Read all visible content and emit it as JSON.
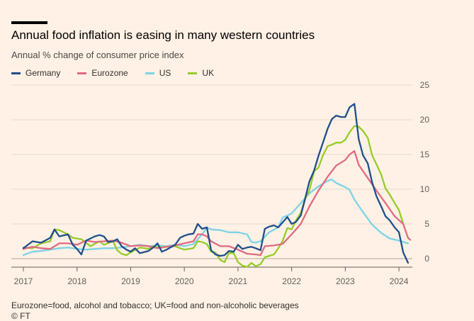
{
  "chart_data": {
    "type": "line",
    "title": "Annual food inflation is easing in many western countries",
    "subtitle": "Annual % change of consumer price index",
    "ylabel": "",
    "xlabel": "",
    "ylim": [
      -1.5,
      25
    ],
    "xlim": [
      2017.0,
      2024.25
    ],
    "yticks": [
      0,
      5,
      10,
      15,
      20,
      25
    ],
    "xticks": [
      "2017",
      "2018",
      "2019",
      "2020",
      "2021",
      "2022",
      "2023",
      "2024"
    ],
    "xtick_values": [
      2017,
      2018,
      2019,
      2020,
      2021,
      2022,
      2023,
      2024
    ],
    "grid": true,
    "legend_position": "top-left",
    "series": [
      {
        "name": "Germany",
        "color": "#1f4e8c",
        "points": [
          [
            2017.0,
            1.5
          ],
          [
            2017.17,
            2.5
          ],
          [
            2017.33,
            2.3
          ],
          [
            2017.5,
            3.0
          ],
          [
            2017.58,
            4.2
          ],
          [
            2017.67,
            3.2
          ],
          [
            2017.83,
            3.5
          ],
          [
            2017.92,
            2.0
          ],
          [
            2018.0,
            1.4
          ],
          [
            2018.08,
            0.6
          ],
          [
            2018.17,
            2.6
          ],
          [
            2018.33,
            3.2
          ],
          [
            2018.42,
            3.4
          ],
          [
            2018.5,
            3.2
          ],
          [
            2018.58,
            2.4
          ],
          [
            2018.67,
            2.5
          ],
          [
            2018.75,
            2.8
          ],
          [
            2018.83,
            1.8
          ],
          [
            2018.92,
            1.3
          ],
          [
            2019.0,
            1.0
          ],
          [
            2019.08,
            1.5
          ],
          [
            2019.17,
            0.8
          ],
          [
            2019.33,
            1.1
          ],
          [
            2019.42,
            1.6
          ],
          [
            2019.5,
            2.2
          ],
          [
            2019.58,
            1.0
          ],
          [
            2019.67,
            1.3
          ],
          [
            2019.83,
            2.0
          ],
          [
            2019.92,
            3.0
          ],
          [
            2020.0,
            3.3
          ],
          [
            2020.08,
            3.5
          ],
          [
            2020.17,
            3.6
          ],
          [
            2020.25,
            5.0
          ],
          [
            2020.33,
            4.3
          ],
          [
            2020.42,
            4.5
          ],
          [
            2020.5,
            1.2
          ],
          [
            2020.58,
            0.6
          ],
          [
            2020.67,
            0.4
          ],
          [
            2020.75,
            0.5
          ],
          [
            2020.83,
            1.1
          ],
          [
            2020.92,
            1.0
          ],
          [
            2021.0,
            2.0
          ],
          [
            2021.08,
            1.4
          ],
          [
            2021.17,
            1.6
          ],
          [
            2021.25,
            1.7
          ],
          [
            2021.33,
            1.5
          ],
          [
            2021.42,
            1.2
          ],
          [
            2021.5,
            4.3
          ],
          [
            2021.58,
            4.6
          ],
          [
            2021.67,
            4.8
          ],
          [
            2021.75,
            4.5
          ],
          [
            2021.83,
            5.2
          ],
          [
            2021.92,
            6.0
          ],
          [
            2022.0,
            5.0
          ],
          [
            2022.08,
            5.3
          ],
          [
            2022.17,
            6.2
          ],
          [
            2022.25,
            8.6
          ],
          [
            2022.33,
            11.1
          ],
          [
            2022.42,
            12.7
          ],
          [
            2022.5,
            14.8
          ],
          [
            2022.58,
            16.6
          ],
          [
            2022.67,
            18.7
          ],
          [
            2022.75,
            20.1
          ],
          [
            2022.83,
            20.6
          ],
          [
            2022.92,
            20.4
          ],
          [
            2023.0,
            20.4
          ],
          [
            2023.08,
            21.8
          ],
          [
            2023.17,
            22.3
          ],
          [
            2023.25,
            17.2
          ],
          [
            2023.33,
            14.9
          ],
          [
            2023.42,
            13.7
          ],
          [
            2023.5,
            11.0
          ],
          [
            2023.58,
            9.0
          ],
          [
            2023.67,
            7.5
          ],
          [
            2023.75,
            6.1
          ],
          [
            2023.83,
            5.5
          ],
          [
            2023.92,
            4.5
          ],
          [
            2024.0,
            3.8
          ],
          [
            2024.08,
            0.9
          ],
          [
            2024.17,
            -0.6
          ]
        ]
      },
      {
        "name": "Eurozone",
        "color": "#e06b80",
        "points": [
          [
            2017.0,
            1.4
          ],
          [
            2017.17,
            1.7
          ],
          [
            2017.33,
            1.5
          ],
          [
            2017.5,
            1.4
          ],
          [
            2017.67,
            2.2
          ],
          [
            2017.83,
            2.2
          ],
          [
            2018.0,
            2.0
          ],
          [
            2018.17,
            2.6
          ],
          [
            2018.33,
            2.4
          ],
          [
            2018.5,
            2.5
          ],
          [
            2018.67,
            2.6
          ],
          [
            2018.83,
            2.3
          ],
          [
            2019.0,
            1.8
          ],
          [
            2019.17,
            1.9
          ],
          [
            2019.33,
            1.8
          ],
          [
            2019.5,
            1.5
          ],
          [
            2019.67,
            1.7
          ],
          [
            2019.83,
            1.9
          ],
          [
            2020.0,
            2.2
          ],
          [
            2020.17,
            2.5
          ],
          [
            2020.25,
            3.5
          ],
          [
            2020.33,
            3.5
          ],
          [
            2020.42,
            3.2
          ],
          [
            2020.5,
            2.5
          ],
          [
            2020.67,
            1.8
          ],
          [
            2020.83,
            1.8
          ],
          [
            2021.0,
            1.3
          ],
          [
            2021.17,
            0.7
          ],
          [
            2021.33,
            0.6
          ],
          [
            2021.42,
            0.5
          ],
          [
            2021.5,
            1.8
          ],
          [
            2021.67,
            1.9
          ],
          [
            2021.83,
            2.1
          ],
          [
            2022.0,
            3.5
          ],
          [
            2022.17,
            5.0
          ],
          [
            2022.33,
            7.5
          ],
          [
            2022.5,
            9.8
          ],
          [
            2022.67,
            11.8
          ],
          [
            2022.83,
            13.4
          ],
          [
            2023.0,
            14.2
          ],
          [
            2023.08,
            15.0
          ],
          [
            2023.17,
            15.5
          ],
          [
            2023.25,
            13.5
          ],
          [
            2023.42,
            11.6
          ],
          [
            2023.58,
            9.8
          ],
          [
            2023.75,
            8.0
          ],
          [
            2023.92,
            6.1
          ],
          [
            2024.08,
            5.0
          ],
          [
            2024.17,
            3.0
          ],
          [
            2024.21,
            2.7
          ]
        ]
      },
      {
        "name": "US",
        "color": "#7ed3e7",
        "points": [
          [
            2017.0,
            0.5
          ],
          [
            2017.17,
            1.0
          ],
          [
            2017.33,
            1.1
          ],
          [
            2017.5,
            1.3
          ],
          [
            2017.67,
            1.5
          ],
          [
            2017.83,
            1.6
          ],
          [
            2018.0,
            1.4
          ],
          [
            2018.17,
            1.3
          ],
          [
            2018.33,
            1.4
          ],
          [
            2018.5,
            1.5
          ],
          [
            2018.67,
            1.5
          ],
          [
            2018.83,
            1.6
          ],
          [
            2019.0,
            1.8
          ],
          [
            2019.17,
            2.0
          ],
          [
            2019.33,
            1.8
          ],
          [
            2019.5,
            1.9
          ],
          [
            2019.67,
            1.8
          ],
          [
            2019.83,
            2.0
          ],
          [
            2020.0,
            1.8
          ],
          [
            2020.17,
            2.1
          ],
          [
            2020.33,
            3.5
          ],
          [
            2020.42,
            4.5
          ],
          [
            2020.5,
            4.2
          ],
          [
            2020.67,
            4.1
          ],
          [
            2020.83,
            3.8
          ],
          [
            2021.0,
            3.8
          ],
          [
            2021.17,
            3.5
          ],
          [
            2021.25,
            2.4
          ],
          [
            2021.33,
            2.3
          ],
          [
            2021.42,
            2.5
          ],
          [
            2021.58,
            3.8
          ],
          [
            2021.75,
            4.5
          ],
          [
            2021.83,
            5.9
          ],
          [
            2022.0,
            6.5
          ],
          [
            2022.17,
            8.0
          ],
          [
            2022.33,
            9.4
          ],
          [
            2022.5,
            10.4
          ],
          [
            2022.67,
            11.2
          ],
          [
            2022.75,
            11.4
          ],
          [
            2022.83,
            10.9
          ],
          [
            2023.0,
            10.3
          ],
          [
            2023.08,
            9.9
          ],
          [
            2023.17,
            8.5
          ],
          [
            2023.33,
            6.7
          ],
          [
            2023.5,
            4.9
          ],
          [
            2023.67,
            3.7
          ],
          [
            2023.83,
            2.9
          ],
          [
            2024.0,
            2.6
          ],
          [
            2024.17,
            2.2
          ]
        ]
      },
      {
        "name": "UK",
        "color": "#96cc28",
        "points": [
          [
            2017.0,
            1.6
          ],
          [
            2017.17,
            1.5
          ],
          [
            2017.33,
            2.2
          ],
          [
            2017.5,
            2.5
          ],
          [
            2017.58,
            4.2
          ],
          [
            2017.67,
            4.1
          ],
          [
            2017.83,
            3.5
          ],
          [
            2017.92,
            3.0
          ],
          [
            2018.08,
            2.8
          ],
          [
            2018.25,
            1.8
          ],
          [
            2018.42,
            2.5
          ],
          [
            2018.5,
            2.0
          ],
          [
            2018.67,
            2.5
          ],
          [
            2018.75,
            1.2
          ],
          [
            2018.83,
            0.7
          ],
          [
            2018.92,
            0.5
          ],
          [
            2019.0,
            0.9
          ],
          [
            2019.17,
            1.6
          ],
          [
            2019.33,
            1.4
          ],
          [
            2019.42,
            1.8
          ],
          [
            2019.5,
            1.6
          ],
          [
            2019.67,
            1.7
          ],
          [
            2019.83,
            1.8
          ],
          [
            2019.92,
            1.5
          ],
          [
            2020.0,
            1.3
          ],
          [
            2020.17,
            1.5
          ],
          [
            2020.25,
            2.5
          ],
          [
            2020.33,
            2.4
          ],
          [
            2020.42,
            2.1
          ],
          [
            2020.5,
            1.0
          ],
          [
            2020.58,
            0.9
          ],
          [
            2020.67,
            -0.2
          ],
          [
            2020.75,
            -0.5
          ],
          [
            2020.83,
            0.8
          ],
          [
            2020.92,
            0.8
          ],
          [
            2021.0,
            -0.5
          ],
          [
            2021.08,
            -1.0
          ],
          [
            2021.17,
            -1.2
          ],
          [
            2021.25,
            -0.6
          ],
          [
            2021.33,
            -1.1
          ],
          [
            2021.42,
            -0.8
          ],
          [
            2021.5,
            0.2
          ],
          [
            2021.67,
            0.6
          ],
          [
            2021.75,
            1.5
          ],
          [
            2021.83,
            2.5
          ],
          [
            2021.92,
            4.4
          ],
          [
            2022.0,
            4.2
          ],
          [
            2022.08,
            5.5
          ],
          [
            2022.17,
            6.6
          ],
          [
            2022.25,
            8.6
          ],
          [
            2022.33,
            9.8
          ],
          [
            2022.42,
            12.6
          ],
          [
            2022.5,
            13.1
          ],
          [
            2022.58,
            14.8
          ],
          [
            2022.67,
            16.2
          ],
          [
            2022.75,
            16.4
          ],
          [
            2022.83,
            16.7
          ],
          [
            2022.92,
            16.7
          ],
          [
            2023.0,
            17.1
          ],
          [
            2023.08,
            18.2
          ],
          [
            2023.17,
            19.1
          ],
          [
            2023.25,
            19.0
          ],
          [
            2023.33,
            18.4
          ],
          [
            2023.42,
            17.4
          ],
          [
            2023.5,
            14.9
          ],
          [
            2023.58,
            13.6
          ],
          [
            2023.67,
            12.1
          ],
          [
            2023.75,
            10.1
          ],
          [
            2023.83,
            9.2
          ],
          [
            2023.92,
            8.0
          ],
          [
            2024.0,
            7.0
          ],
          [
            2024.08,
            5.0
          ]
        ]
      }
    ]
  },
  "footnote": "Eurozone=food, alcohol and tobacco; UK=food and non-alcoholic beverages",
  "source": "© FT"
}
